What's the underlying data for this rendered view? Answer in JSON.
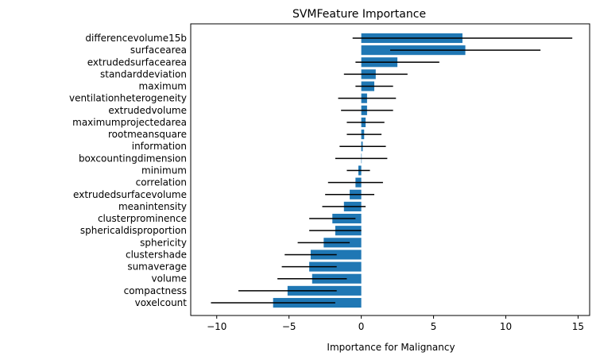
{
  "chart_data": {
    "type": "bar",
    "orientation": "horizontal",
    "title": "SVMFeature Importance",
    "xlabel": "Importance for Malignancy",
    "ylabel": "",
    "xlim": [
      -11.8,
      15.8
    ],
    "xticks": [
      -10,
      -5,
      0,
      5,
      10,
      15
    ],
    "grid": false,
    "colors": {
      "bar": "#1f77b4",
      "error": "#000000"
    },
    "readable_labels": [
      {
        "label": "differencevolume15b",
        "value": 7.0,
        "error": 7.6
      },
      {
        "label": "surfacearea",
        "value": 7.2,
        "error": 5.2
      },
      {
        "label": "extrudedsurfacearea",
        "value": 2.5,
        "error": 2.9
      },
      {
        "label": "standarddeviation",
        "value": 1.0,
        "error": 2.2
      },
      {
        "label": "maximum",
        "value": 0.9,
        "error": 1.3
      },
      {
        "label": "ventilationheterogeneity",
        "value": 0.4,
        "error": 2.0
      },
      {
        "label": "extrudedvolume",
        "value": 0.4,
        "error": 1.8
      },
      {
        "label": "maximumprojectedarea",
        "value": 0.3,
        "error": 1.3
      },
      {
        "label": "rootmeansquare",
        "value": 0.2,
        "error": 1.2
      },
      {
        "label": "information",
        "value": 0.1,
        "error": 1.6
      },
      {
        "label": "boxcountingdimension",
        "value": 0.0,
        "error": 1.8
      },
      {
        "label": "minimum",
        "value": -0.2,
        "error": 0.8
      },
      {
        "label": "correlation",
        "value": -0.4,
        "error": 1.9
      },
      {
        "label": "extrudedsurfacevolume",
        "value": -0.8,
        "error": 1.7
      },
      {
        "label": "meanintensity",
        "value": -1.2,
        "error": 1.5
      },
      {
        "label": "clusterprominence",
        "value": -2.0,
        "error": 1.6
      },
      {
        "label": "sphericaldisproportion",
        "value": -1.8,
        "error": 1.8
      },
      {
        "label": "sphericity",
        "value": -2.6,
        "error": 1.8
      },
      {
        "label": "clustershade",
        "value": -3.5,
        "error": 1.8
      },
      {
        "label": "sumaverage",
        "value": -3.6,
        "error": 1.9
      },
      {
        "label": "volume",
        "value": -3.4,
        "error": 2.4
      },
      {
        "label": "compactness",
        "value": -5.1,
        "error": 3.4
      },
      {
        "label": "voxelcount",
        "value": -6.1,
        "error": 4.3
      }
    ]
  }
}
